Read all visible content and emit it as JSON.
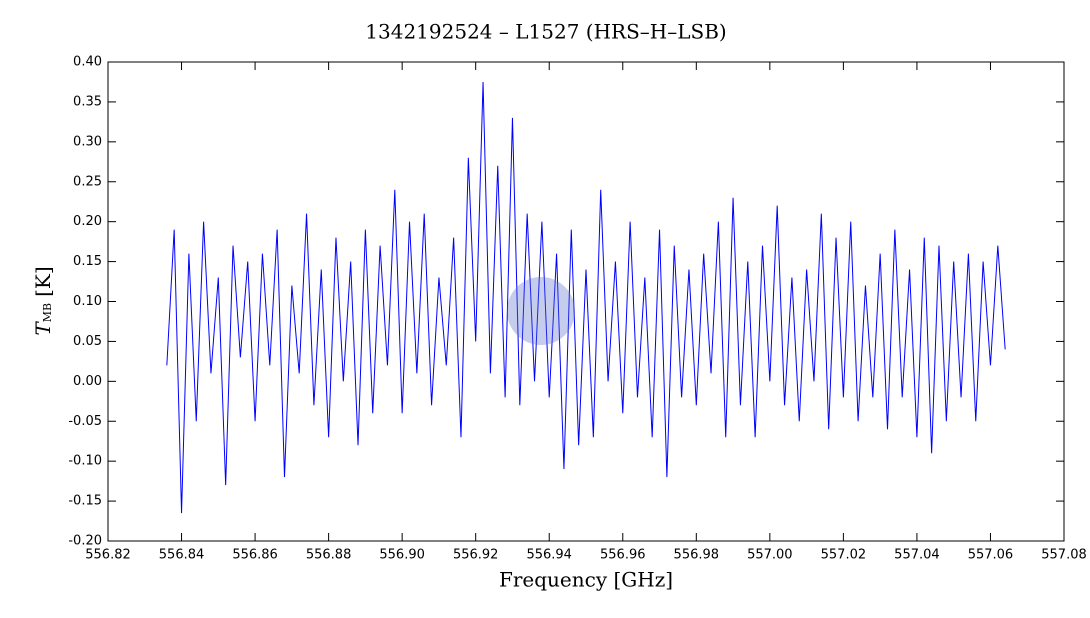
{
  "chart_data": {
    "type": "line",
    "title": "1342192524 – L1527 (HRS–H–LSB)",
    "xlabel": "Frequency [GHz]",
    "ylabel": [
      "T",
      "MB",
      "[K]"
    ],
    "color": "#0000ff",
    "xlim": [
      556.82,
      557.08
    ],
    "ylim": [
      -0.2,
      0.4
    ],
    "xticks": [
      556.82,
      556.84,
      556.86,
      556.88,
      {
        "value": 556.9,
        "label": "556.90"
      },
      556.92,
      556.94,
      556.96,
      556.98,
      {
        "value": 557.0,
        "label": "557.00"
      },
      557.02,
      557.04,
      557.06,
      557.08
    ],
    "yticks": [
      {
        "value": -0.2,
        "label": "-0.20"
      },
      -0.15,
      {
        "value": -0.1,
        "label": "-0.10"
      },
      -0.05,
      {
        "value": 0,
        "label": "0.00"
      },
      0.05,
      {
        "value": 0.1,
        "label": "0.10"
      },
      0.15,
      {
        "value": 0.2,
        "label": "0.20"
      },
      0.25,
      {
        "value": 0.3,
        "label": "0.30"
      },
      0.35,
      {
        "value": 0.4,
        "label": "0.40"
      }
    ],
    "x": [
      556.836,
      556.838,
      556.84,
      556.842,
      556.844,
      556.846,
      556.848,
      556.85,
      556.852,
      556.854,
      556.856,
      556.858,
      556.86,
      556.862,
      556.864,
      556.866,
      556.868,
      556.87,
      556.872,
      556.874,
      556.876,
      556.878,
      556.88,
      556.882,
      556.884,
      556.886,
      556.888,
      556.89,
      556.892,
      556.894,
      556.896,
      556.898,
      556.9,
      556.902,
      556.904,
      556.906,
      556.908,
      556.91,
      556.912,
      556.914,
      556.916,
      556.918,
      556.92,
      556.922,
      556.924,
      556.926,
      556.928,
      556.93,
      556.932,
      556.934,
      556.936,
      556.938,
      556.94,
      556.942,
      556.944,
      556.946,
      556.948,
      556.95,
      556.952,
      556.954,
      556.956,
      556.958,
      556.96,
      556.962,
      556.964,
      556.966,
      556.968,
      556.97,
      556.972,
      556.974,
      556.976,
      556.978,
      556.98,
      556.982,
      556.984,
      556.986,
      556.988,
      556.99,
      556.992,
      556.994,
      556.996,
      556.998,
      557.0,
      557.002,
      557.004,
      557.006,
      557.008,
      557.01,
      557.012,
      557.014,
      557.016,
      557.018,
      557.02,
      557.022,
      557.024,
      557.026,
      557.028,
      557.03,
      557.032,
      557.034,
      557.036,
      557.038,
      557.04,
      557.042,
      557.044,
      557.046,
      557.048,
      557.05,
      557.052,
      557.054,
      557.056,
      557.058,
      557.06,
      557.062,
      557.064
    ],
    "values": [
      0.02,
      0.19,
      -0.165,
      0.16,
      -0.05,
      0.2,
      0.01,
      0.13,
      -0.13,
      0.17,
      0.03,
      0.15,
      -0.05,
      0.16,
      0.02,
      0.19,
      -0.12,
      0.12,
      0.01,
      0.21,
      -0.03,
      0.14,
      -0.07,
      0.18,
      0.0,
      0.15,
      -0.08,
      0.19,
      -0.04,
      0.17,
      0.02,
      0.24,
      -0.04,
      0.2,
      0.01,
      0.21,
      -0.03,
      0.13,
      0.02,
      0.18,
      -0.07,
      0.28,
      0.05,
      0.375,
      0.01,
      0.27,
      -0.02,
      0.33,
      -0.03,
      0.21,
      0.0,
      0.2,
      -0.02,
      0.16,
      -0.11,
      0.19,
      -0.08,
      0.14,
      -0.07,
      0.24,
      0.0,
      0.15,
      -0.04,
      0.2,
      -0.02,
      0.13,
      -0.07,
      0.19,
      -0.12,
      0.17,
      -0.02,
      0.14,
      -0.03,
      0.16,
      0.01,
      0.2,
      -0.07,
      0.23,
      -0.03,
      0.15,
      -0.07,
      0.17,
      0.0,
      0.22,
      -0.03,
      0.13,
      -0.05,
      0.14,
      0.0,
      0.21,
      -0.06,
      0.18,
      -0.02,
      0.2,
      -0.05,
      0.12,
      -0.02,
      0.16,
      -0.06,
      0.19,
      -0.02,
      0.14,
      -0.07,
      0.18,
      -0.09,
      0.17,
      -0.05,
      0.15,
      -0.02,
      0.16,
      -0.05,
      0.15,
      0.02,
      0.17,
      0.04
    ]
  }
}
